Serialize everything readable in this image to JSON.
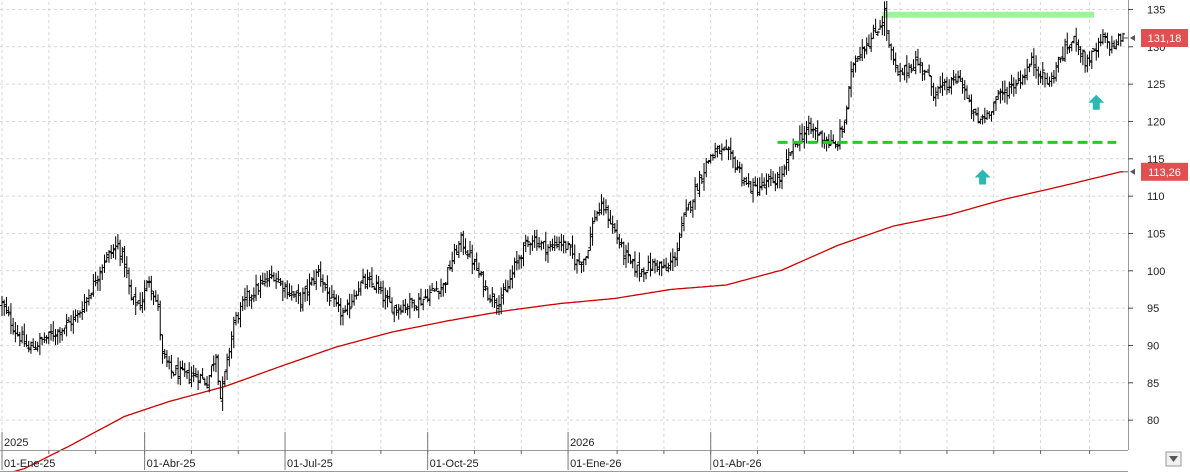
{
  "chart_data": {
    "type": "bar",
    "subtype": "ohlc",
    "x_axis": {
      "labels": [
        "01-Ene-25",
        "01-Abr-25",
        "01-Jul-25",
        "01-Oct-25",
        "01-Ene-26",
        "01-Abr-26"
      ],
      "year_labels": [
        "2025",
        "2026"
      ]
    },
    "y_axis": {
      "side": "right",
      "ticks": [
        80,
        85,
        90,
        95,
        100,
        105,
        110,
        115,
        120,
        125,
        130,
        135
      ],
      "range": [
        76,
        136
      ]
    },
    "grid": true,
    "price_series": {
      "color": "#000000",
      "keypoints": [
        [
          0,
          95.5
        ],
        [
          6,
          92
        ],
        [
          12,
          89.5
        ],
        [
          20,
          91
        ],
        [
          28,
          92.5
        ],
        [
          34,
          94
        ],
        [
          40,
          97.5
        ],
        [
          46,
          101.5
        ],
        [
          52,
          103.5
        ],
        [
          55,
          101
        ],
        [
          58,
          96
        ],
        [
          62,
          95.5
        ],
        [
          66,
          99
        ],
        [
          70,
          95
        ],
        [
          72,
          88.5
        ],
        [
          76,
          86.5
        ],
        [
          82,
          86
        ],
        [
          88,
          86
        ],
        [
          92,
          85
        ],
        [
          96,
          89
        ],
        [
          98,
          83
        ],
        [
          100,
          86
        ],
        [
          104,
          93
        ],
        [
          110,
          96.5
        ],
        [
          116,
          98
        ],
        [
          122,
          99.5
        ],
        [
          126,
          98
        ],
        [
          130,
          97
        ],
        [
          134,
          96
        ],
        [
          138,
          98
        ],
        [
          142,
          100
        ],
        [
          146,
          97
        ],
        [
          150,
          95
        ],
        [
          154,
          94
        ],
        [
          158,
          97
        ],
        [
          162,
          98.5
        ],
        [
          168,
          98
        ],
        [
          172,
          96
        ],
        [
          176,
          95
        ],
        [
          182,
          95.5
        ],
        [
          188,
          96
        ],
        [
          194,
          97.5
        ],
        [
          198,
          98
        ],
        [
          202,
          101.5
        ],
        [
          206,
          104
        ],
        [
          210,
          102
        ],
        [
          214,
          99.5
        ],
        [
          218,
          97
        ],
        [
          222,
          96
        ],
        [
          226,
          97
        ],
        [
          230,
          100.5
        ],
        [
          234,
          103
        ],
        [
          238,
          104.5
        ],
        [
          242,
          103.5
        ],
        [
          246,
          103
        ],
        [
          250,
          104
        ],
        [
          254,
          103
        ],
        [
          258,
          101
        ],
        [
          262,
          102
        ],
        [
          266,
          107.5
        ],
        [
          270,
          108.5
        ],
        [
          274,
          106
        ],
        [
          278,
          103
        ],
        [
          282,
          101
        ],
        [
          286,
          100
        ],
        [
          290,
          100.5
        ],
        [
          294,
          101
        ],
        [
          298,
          100
        ],
        [
          302,
          102
        ],
        [
          306,
          107
        ],
        [
          310,
          110
        ],
        [
          314,
          113
        ],
        [
          318,
          115.5
        ],
        [
          322,
          116
        ],
        [
          326,
          115.5
        ],
        [
          330,
          114
        ],
        [
          334,
          111.5
        ],
        [
          338,
          111
        ],
        [
          342,
          111.5
        ],
        [
          346,
          112
        ],
        [
          350,
          112.5
        ],
        [
          354,
          116
        ],
        [
          358,
          118
        ],
        [
          362,
          119
        ],
        [
          366,
          118.5
        ],
        [
          370,
          117.5
        ],
        [
          374,
          116.5
        ],
        [
          378,
          120
        ],
        [
          382,
          128
        ],
        [
          386,
          130
        ],
        [
          390,
          131
        ],
        [
          394,
          133
        ],
        [
          396,
          134.5
        ],
        [
          398,
          130
        ],
        [
          402,
          126
        ],
        [
          406,
          127
        ],
        [
          410,
          128
        ],
        [
          414,
          127
        ],
        [
          418,
          124
        ],
        [
          422,
          124.5
        ],
        [
          426,
          125
        ],
        [
          430,
          126
        ],
        [
          434,
          122
        ],
        [
          438,
          120
        ],
        [
          442,
          121
        ],
        [
          446,
          123
        ],
        [
          450,
          124
        ],
        [
          454,
          125
        ],
        [
          458,
          126
        ],
        [
          462,
          128
        ],
        [
          466,
          126.5
        ],
        [
          470,
          125
        ],
        [
          474,
          128
        ],
        [
          478,
          130
        ],
        [
          482,
          131
        ],
        [
          486,
          128
        ],
        [
          490,
          129
        ],
        [
          494,
          131
        ],
        [
          498,
          130
        ],
        [
          502,
          131.2
        ]
      ]
    },
    "moving_average": {
      "color": "#cc0000",
      "keypoints": [
        [
          0,
          72.7
        ],
        [
          10,
          73.5
        ],
        [
          30,
          76.5
        ],
        [
          55,
          80.5
        ],
        [
          75,
          82.5
        ],
        [
          100,
          84.5
        ],
        [
          125,
          87.2
        ],
        [
          150,
          89.8
        ],
        [
          175,
          91.8
        ],
        [
          200,
          93.3
        ],
        [
          225,
          94.6
        ],
        [
          250,
          95.6
        ],
        [
          275,
          96.3
        ],
        [
          300,
          97.5
        ],
        [
          325,
          98.1
        ],
        [
          350,
          100.1
        ],
        [
          375,
          103.4
        ],
        [
          400,
          106
        ],
        [
          425,
          107.5
        ],
        [
          450,
          109.6
        ],
        [
          475,
          111.3
        ],
        [
          502,
          113.26
        ]
      ]
    },
    "badges": [
      {
        "text": "131,18",
        "value": 131.18,
        "color": "#e05050"
      },
      {
        "text": "113,26",
        "value": 113.26,
        "color": "#e05050"
      }
    ],
    "annotations": {
      "resistance_line": {
        "value": 134.3,
        "color": "#9ef39e",
        "x_range": [
          395,
          490
        ],
        "style": "solid"
      },
      "support_line": {
        "value": 117.2,
        "color": "#22cc22",
        "x_range": [
          348,
          500
        ],
        "style": "dashed"
      },
      "arrows": [
        {
          "x": 440,
          "value": 112.5,
          "color": "#2ab8b0",
          "direction": "up"
        },
        {
          "x": 491,
          "value": 122.5,
          "color": "#2ab8b0",
          "direction": "up"
        }
      ]
    }
  }
}
